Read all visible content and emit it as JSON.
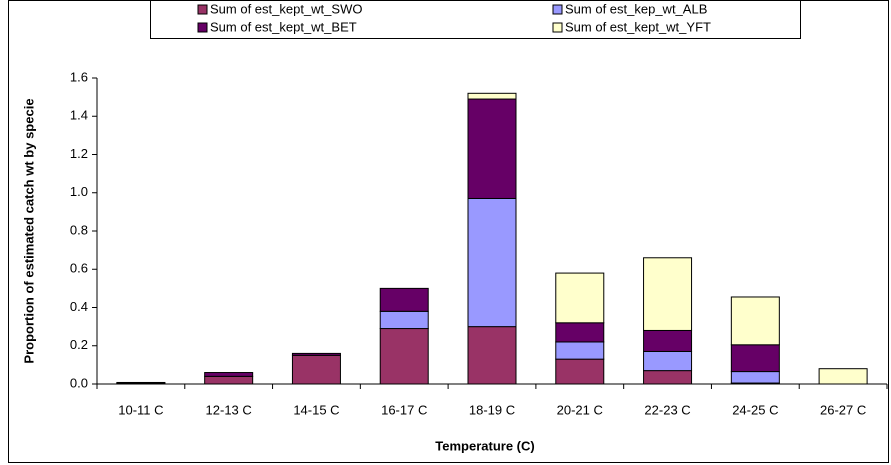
{
  "chart_data": {
    "type": "stacked_bar",
    "xlabel": "Temperature (C)",
    "ylabel": "Proportion of estimated catch wt by specie",
    "categories": [
      "10-11 C",
      "12-13 C",
      "14-15 C",
      "16-17 C",
      "18-19 C",
      "20-21 C",
      "22-23 C",
      "24-25 C",
      "26-27 C"
    ],
    "series": [
      {
        "name": "Sum of est_kept_wt_SWO",
        "color": "#993366",
        "values": [
          0.005,
          0.04,
          0.15,
          0.29,
          0.3,
          0.13,
          0.07,
          0.005,
          0
        ]
      },
      {
        "name": "Sum of est_kep_wt_ALB",
        "color": "#9999ff",
        "values": [
          0,
          0,
          0,
          0.09,
          0.67,
          0.09,
          0.1,
          0.06,
          0
        ]
      },
      {
        "name": "Sum of est_kept_wt_BET",
        "color": "#660066",
        "values": [
          0.003,
          0.02,
          0.01,
          0.12,
          0.52,
          0.1,
          0.11,
          0.14,
          0
        ]
      },
      {
        "name": "Sum of est_kept_wt_YFT",
        "color": "#ffffcc",
        "values": [
          0,
          0,
          0,
          0,
          0.03,
          0.26,
          0.38,
          0.25,
          0.08
        ]
      }
    ],
    "ylim": [
      0,
      1.6
    ],
    "yticks": [
      {
        "value": 0,
        "label": "0.0"
      },
      0.2,
      0.4,
      0.6,
      0.8,
      {
        "value": 1,
        "label": "1.0"
      },
      1.2,
      1.4,
      1.6
    ],
    "legend": "top"
  }
}
